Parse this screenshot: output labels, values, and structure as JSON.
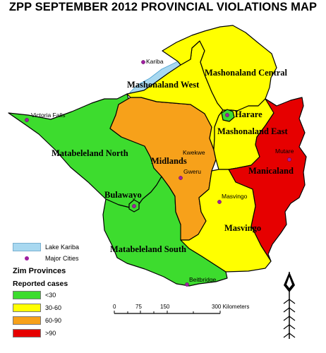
{
  "title": "ZPP SEPTEMBER 2012 PROVINCIAL VIOLATIONS MAP",
  "colors": {
    "low": "#3ddc2e",
    "mid": "#ffff00",
    "high": "#f7a11a",
    "veryhigh": "#e60000",
    "lake": "#a8d8f0",
    "city": "#a020a0"
  },
  "provinces": {
    "matabeleland_north": "Matabeleland North",
    "matabeleland_south": "Matabeleland South",
    "midlands": "Midlands",
    "mashonaland_west": "Mashonaland West",
    "mashonaland_central": "Mashonaland Central",
    "mashonaland_east": "Mashonaland East",
    "manicaland": "Manicaland",
    "masvingo": "Masvingo",
    "harare": "Harare",
    "bulawayo": "Bulawayo"
  },
  "cities": {
    "kariba": "Kariba",
    "victoria_falls": "Victoria Falls",
    "kwekwe": "Kwekwe",
    "gweru": "Gweru",
    "mutare": "Mutare",
    "masvingo": "Masvingo",
    "beitbridge": "Beitbridge"
  },
  "legend": {
    "lake": "Lake Kariba",
    "cities": "Major Cities",
    "heading": "Zim Provinces",
    "subheading": "Reported cases",
    "classes": [
      "<30",
      "30-60",
      "60-90",
      ">90"
    ]
  },
  "scale": {
    "ticks": [
      "0",
      "75",
      "150",
      "300 Kilometers"
    ]
  }
}
